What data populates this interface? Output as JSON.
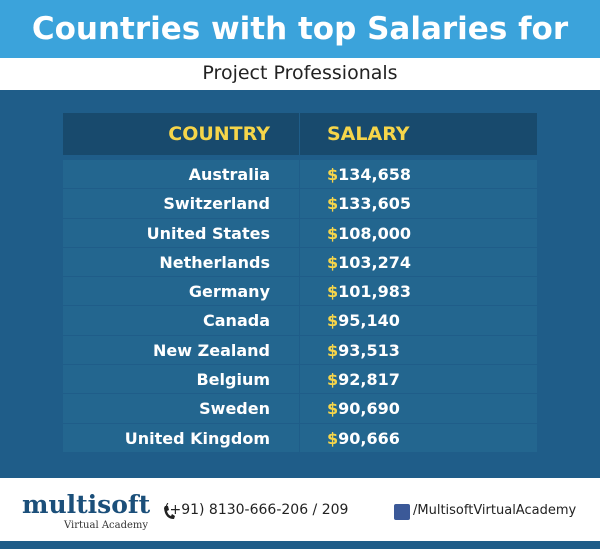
{
  "header": {
    "title": "Countries with top Salaries for",
    "subtitle": "Project Professionals"
  },
  "table": {
    "columns": [
      "COUNTRY",
      "SALARY"
    ],
    "rows": [
      {
        "country": "Australia",
        "currency": "$",
        "amount": "134,658"
      },
      {
        "country": "Switzerland",
        "currency": "$",
        "amount": "133,605"
      },
      {
        "country": "United States",
        "currency": "$",
        "amount": "108,000"
      },
      {
        "country": "Netherlands",
        "currency": "$",
        "amount": "103,274"
      },
      {
        "country": "Germany",
        "currency": "$",
        "amount": "101,983"
      },
      {
        "country": "Canada",
        "currency": "$",
        "amount": "95,140"
      },
      {
        "country": "New Zealand",
        "currency": "$",
        "amount": "93,513"
      },
      {
        "country": "Belgium",
        "currency": "$",
        "amount": "92,817"
      },
      {
        "country": "Sweden",
        "currency": "$",
        "amount": "90,690"
      },
      {
        "country": "United Kingdom",
        "currency": "$",
        "amount": "90,666"
      }
    ]
  },
  "footer": {
    "logo": "multisoft",
    "logo_sub": "Virtual Academy",
    "phone": "(+91) 8130-666-206 / 209",
    "facebook": "/MultisoftVirtualAcademy"
  }
}
